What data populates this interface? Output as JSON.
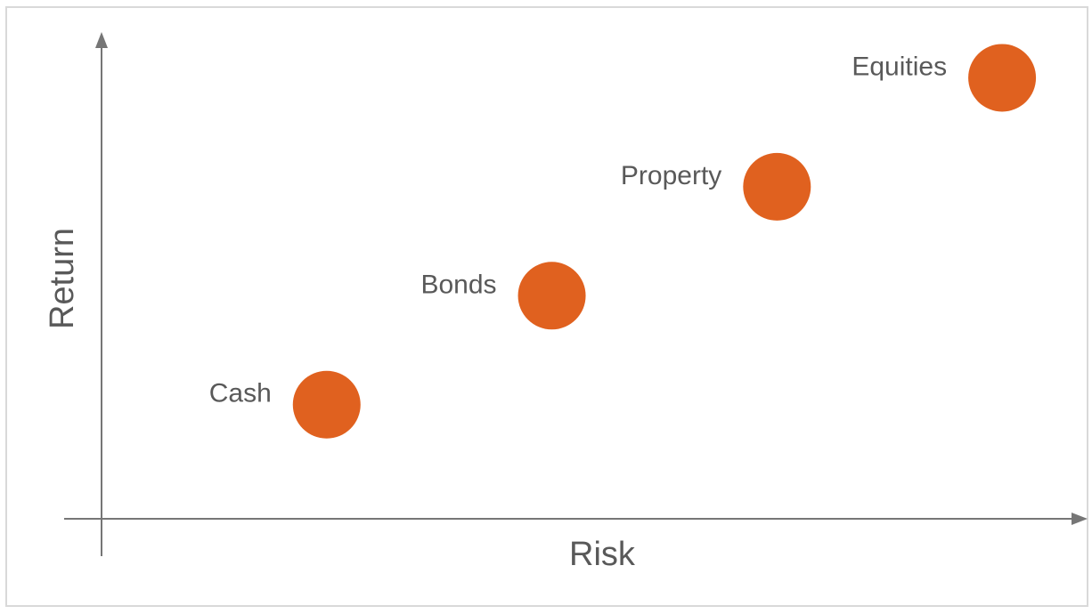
{
  "chart_data": {
    "type": "scatter",
    "title": "",
    "xlabel": "Risk",
    "ylabel": "Return",
    "xlim": [
      0,
      10
    ],
    "ylim": [
      0,
      10
    ],
    "grid": false,
    "legend": "none",
    "points": [
      {
        "label": "Cash",
        "x": 2.3,
        "y": 2.2
      },
      {
        "label": "Bonds",
        "x": 4.6,
        "y": 4.3
      },
      {
        "label": "Property",
        "x": 6.9,
        "y": 6.4
      },
      {
        "label": "Equities",
        "x": 9.2,
        "y": 8.5
      }
    ]
  },
  "colors": {
    "marker": "#e0611f",
    "axis": "#767676",
    "text": "#595959",
    "frame": "#d9d9d9"
  }
}
